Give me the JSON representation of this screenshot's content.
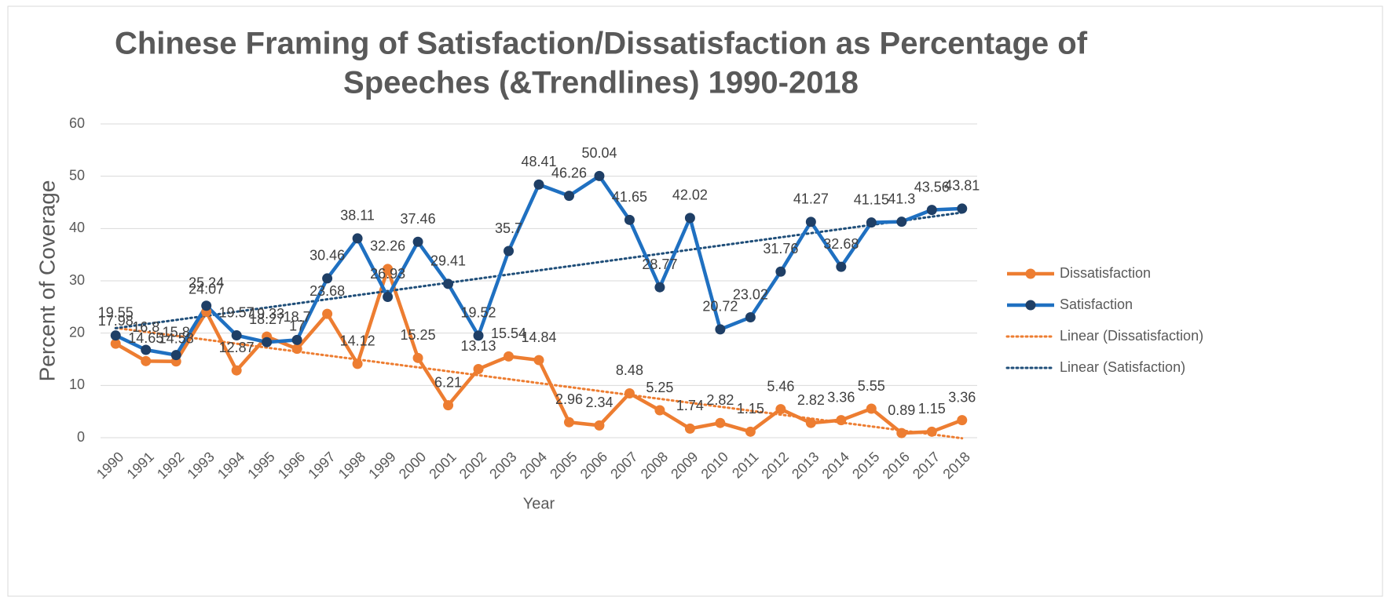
{
  "chart_data": {
    "type": "line",
    "title": "Chinese Framing of Satisfaction/Dissatisfaction as Percentage of",
    "title_line2": "Speeches (&Trendlines) 1990-2018",
    "y_label": "Percent of Coverage",
    "x_label": "Year",
    "categories": [
      "1990",
      "1991",
      "1992",
      "1993",
      "1994",
      "1995",
      "1996",
      "1997",
      "1998",
      "1999",
      "2000",
      "2001",
      "2002",
      "2003",
      "2004",
      "2005",
      "2006",
      "2007",
      "2008",
      "2009",
      "2010",
      "2011",
      "2012",
      "2013",
      "2014",
      "2015",
      "2016",
      "2017",
      "2018"
    ],
    "series": [
      {
        "name": "Dissatisfaction",
        "color": "#ed7d31",
        "marker_color": "#ed7d31",
        "trendline": "Linear (Dissatisfaction)",
        "trendline_color": "#ed7d31",
        "values": [
          17.98,
          14.65,
          14.58,
          24.07,
          12.87,
          19.33,
          17,
          23.68,
          14.12,
          32.26,
          15.25,
          6.21,
          13.13,
          15.54,
          14.84,
          2.96,
          2.34,
          8.48,
          5.25,
          1.74,
          2.82,
          1.15,
          5.46,
          2.82,
          3.36,
          5.55,
          0.89,
          1.15,
          3.36
        ]
      },
      {
        "name": "Satisfaction",
        "color": "#1f70c1",
        "marker_color": "#1f3f66",
        "trendline": "Linear (Satisfaction)",
        "trendline_color": "#1f4e79",
        "values": [
          19.55,
          16.8,
          15.8,
          25.24,
          19.57,
          18.27,
          18.7,
          30.46,
          38.11,
          26.93,
          37.46,
          29.41,
          19.52,
          35.7,
          48.41,
          46.26,
          50.04,
          41.65,
          28.77,
          42.02,
          20.72,
          23.02,
          31.76,
          41.27,
          32.68,
          41.15,
          41.3,
          43.56,
          43.81
        ]
      }
    ],
    "ylim": [
      0,
      60
    ],
    "yticks": [
      0,
      10,
      20,
      30,
      40,
      50,
      60
    ],
    "grid": true,
    "legend": "right"
  }
}
